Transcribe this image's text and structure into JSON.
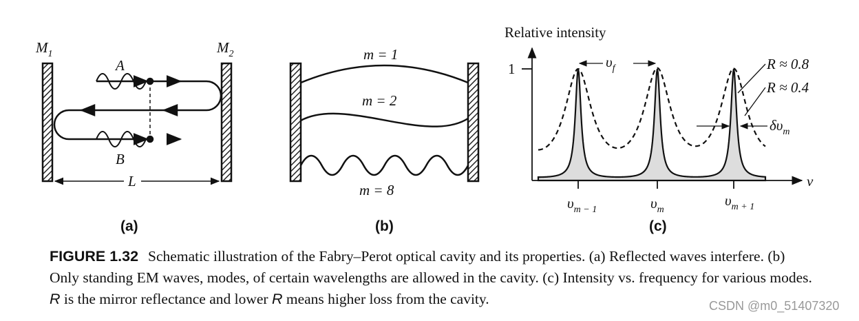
{
  "panel_a": {
    "mirror_left": {
      "main": "M",
      "sub": "1"
    },
    "mirror_right": {
      "main": "M",
      "sub": "2"
    },
    "wave_a": "A",
    "wave_b": "B",
    "length": "L",
    "label": "(a)"
  },
  "panel_b": {
    "modes": [
      "m = 1",
      "m = 2",
      "m = 8"
    ],
    "label": "(b)"
  },
  "panel_c": {
    "y_axis_title": "Relative intensity",
    "y_tick": "1",
    "x_axis_symbol": "ν",
    "spacing": {
      "main": "υ",
      "sub": "f"
    },
    "curves": [
      "R ≈ 0.8",
      "R ≈ 0.4"
    ],
    "linewidth": {
      "main": "δυ",
      "sub": "m"
    },
    "peaks": [
      {
        "main": "υ",
        "sub": "m − 1"
      },
      {
        "main": "υ",
        "sub": "m"
      },
      {
        "main": "υ",
        "sub": "m + 1"
      }
    ],
    "label": "(c)"
  },
  "caption": {
    "figure_label": "FIGURE 1.32",
    "text_1": "Schematic illustration of the Fabry–Perot optical cavity and its properties. (a) Reflected waves interfere. (b) Only standing EM waves, modes, of certain wavelengths are allowed in the cavity. (c) Intensity vs. frequency for various modes. ",
    "symbol_1": "R",
    "text_2": " is the mirror reflectance and lower ",
    "symbol_2": "R",
    "text_3": " means higher loss from the cavity."
  },
  "watermark": "CSDN @m0_51407320"
}
